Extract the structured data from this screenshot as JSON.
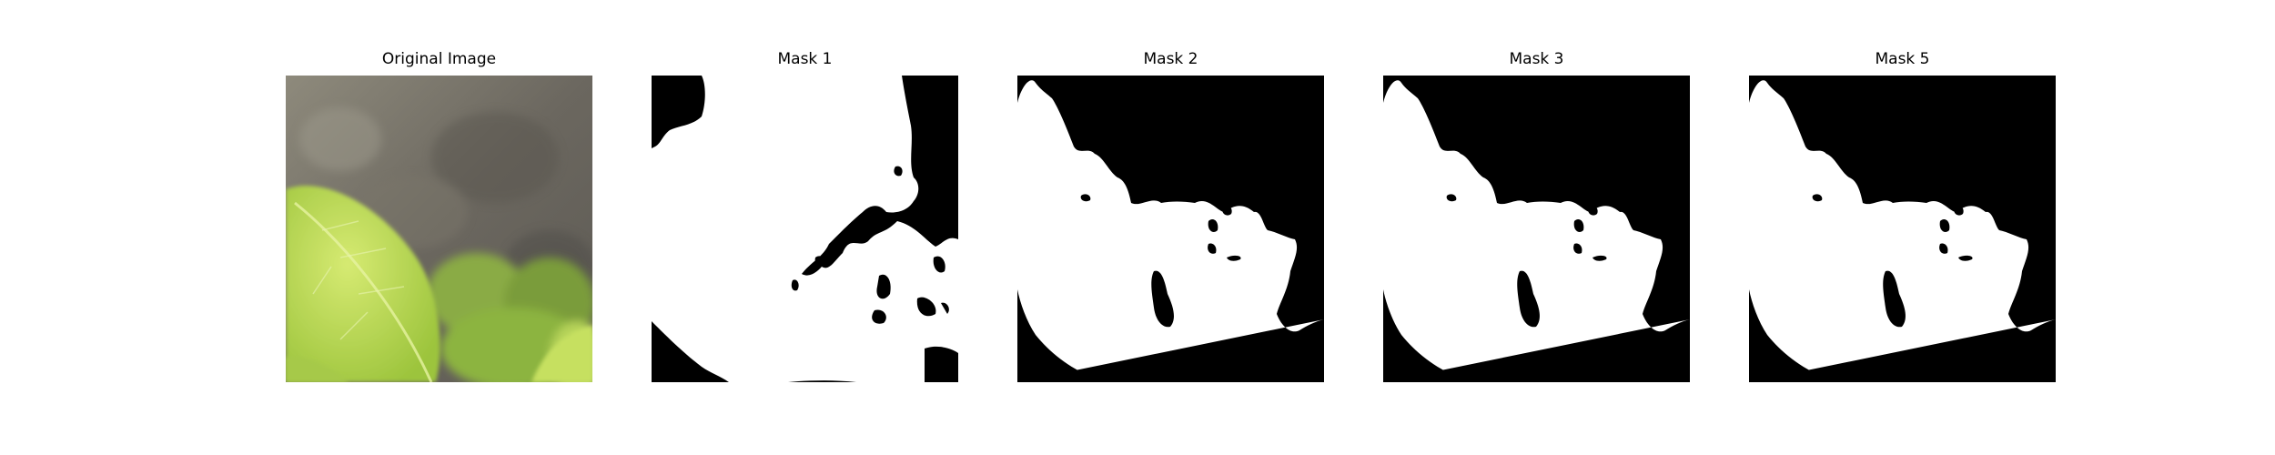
{
  "figure": {
    "panels": [
      {
        "title": "Original Image",
        "kind": "photo"
      },
      {
        "title": "Mask 1",
        "kind": "mask"
      },
      {
        "title": "Mask 2",
        "kind": "mask"
      },
      {
        "title": "Mask 3",
        "kind": "mask"
      },
      {
        "title": "Mask 5",
        "kind": "mask"
      }
    ]
  },
  "colors": {
    "mask_foreground": "#ffffff",
    "mask_background": "#000000",
    "leaf_light": "#c8e060",
    "leaf_dark": "#7ea630",
    "wall_grey": "#6f6b62"
  }
}
